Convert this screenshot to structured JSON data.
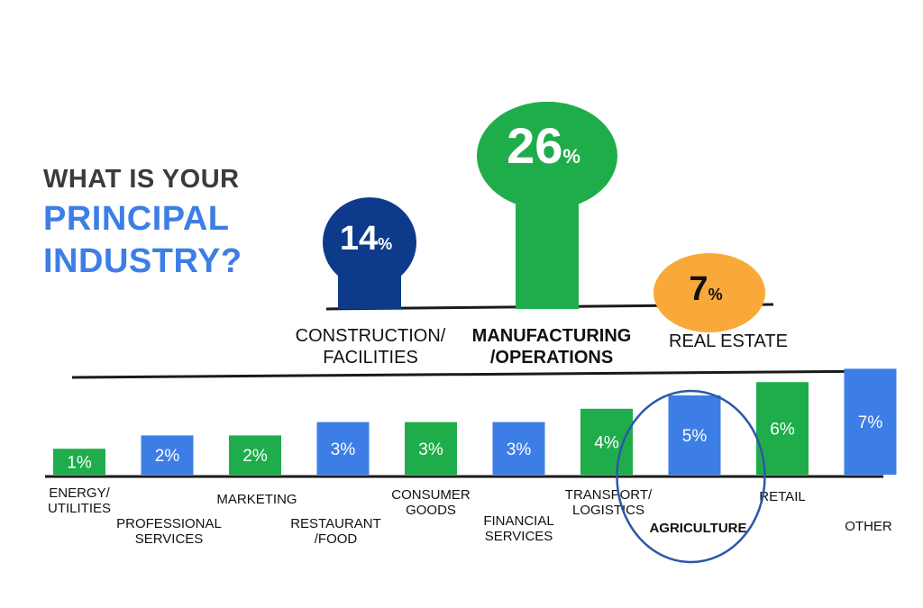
{
  "title": {
    "line1": "WHAT IS YOUR",
    "line2": "PRINCIPAL",
    "line3": "INDUSTRY?"
  },
  "colors": {
    "navy": "#0e3a8c",
    "green": "#1fad4b",
    "orange": "#f9a93a",
    "blue": "#3d7ee6",
    "circle": "#2b57a8",
    "text": "#111111"
  },
  "chart_data": [
    {
      "type": "bar",
      "style": "pin / balloon shapes",
      "categories": [
        "CONSTRUCTION/\nFACILITIES",
        "MANUFACTURING\n/OPERATIONS",
        "REAL ESTATE"
      ],
      "values": [
        14,
        26,
        7
      ],
      "value_labels": [
        {
          "num": "14",
          "unit": "%"
        },
        {
          "num": "26",
          "unit": "%"
        },
        {
          "num": "7",
          "unit": "%"
        }
      ],
      "colors": [
        "#0e3a8c",
        "#1fad4b",
        "#f9a93a"
      ],
      "emphasized_category": "MANUFACTURING\n/OPERATIONS"
    },
    {
      "type": "bar",
      "categories": [
        "ENERGY/\nUTILITIES",
        "PROFESSIONAL\nSERVICES",
        "MARKETING",
        "RESTAURANT\n/FOOD",
        "CONSUMER\nGOODS",
        "FINANCIAL\nSERVICES",
        "TRANSPORT/\nLOGISTICS",
        "AGRICULTURE",
        "RETAIL",
        "OTHER"
      ],
      "values": [
        1,
        2,
        2,
        3,
        3,
        3,
        4,
        5,
        6,
        7
      ],
      "value_labels": [
        "1%",
        "2%",
        "2%",
        "3%",
        "3%",
        "3%",
        "4%",
        "5%",
        "6%",
        "7%"
      ],
      "colors": [
        "#1fad4b",
        "#3d7ee6",
        "#1fad4b",
        "#3d7ee6",
        "#1fad4b",
        "#3d7ee6",
        "#1fad4b",
        "#3d7ee6",
        "#1fad4b",
        "#3d7ee6"
      ],
      "highlighted_category": "AGRICULTURE"
    }
  ]
}
